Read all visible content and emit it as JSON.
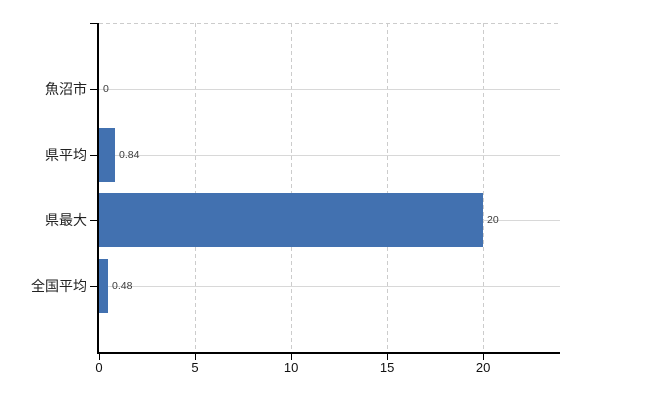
{
  "chart_data": {
    "type": "bar",
    "orientation": "horizontal",
    "title": "",
    "categories": [
      "魚沼市",
      "県平均",
      "県最大",
      "全国平均"
    ],
    "values": [
      0,
      0.84,
      20,
      0.48
    ],
    "value_labels": [
      "0",
      "0.84",
      "20",
      "0.48"
    ],
    "x_ticks": [
      0,
      5,
      10,
      15,
      20
    ],
    "xlim": [
      0,
      24
    ],
    "grid": true,
    "legend": "none",
    "colors": {
      "bar": "#4271b0",
      "grid_solid": "#d8d8d8",
      "grid_dashed": "#cccccc",
      "axis": "#000000",
      "category_label": "#222222",
      "tick_label": "#111111",
      "value_label": "#3c3c3c",
      "background": "#ffffff"
    }
  }
}
